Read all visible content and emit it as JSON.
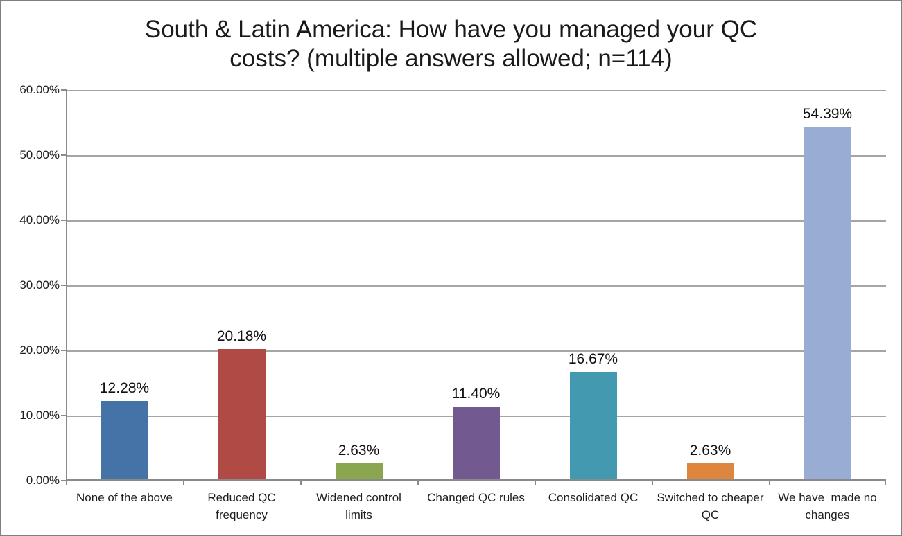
{
  "chart_data": {
    "type": "bar",
    "title": "South & Latin America: How have you managed your QC costs? (multiple answers allowed; n=114)",
    "title_lines": [
      "South & Latin America: How have you managed your QC",
      "costs? (multiple answers allowed; n=114)"
    ],
    "categories": [
      "None of the above",
      "Reduced QC frequency",
      "Widened control limits",
      "Changed QC rules",
      "Consolidated QC",
      "Switched to cheaper QC",
      "We have  made no changes"
    ],
    "values": [
      12.28,
      20.18,
      2.63,
      11.4,
      16.67,
      2.63,
      54.39
    ],
    "value_labels": [
      "12.28%",
      "20.18%",
      "2.63%",
      "11.40%",
      "16.67%",
      "2.63%",
      "54.39%"
    ],
    "bar_colors": [
      "#4573A7",
      "#AF4A44",
      "#8AA64E",
      "#725990",
      "#4299B0",
      "#DE863D",
      "#98ACD4"
    ],
    "ylim": [
      0,
      60
    ],
    "ytick_labels": [
      "60.00%",
      "50.00%",
      "40.00%",
      "30.00%",
      "20.00%",
      "10.00%",
      "0.00%"
    ],
    "xlabel": "",
    "ylabel": "",
    "grid": "horizontal",
    "legend": "none"
  },
  "colors": {
    "gridline": "#A5A5A5",
    "axis": "#8A8A8A",
    "border": "#7F7F7F",
    "text": "#1A1A1A"
  }
}
